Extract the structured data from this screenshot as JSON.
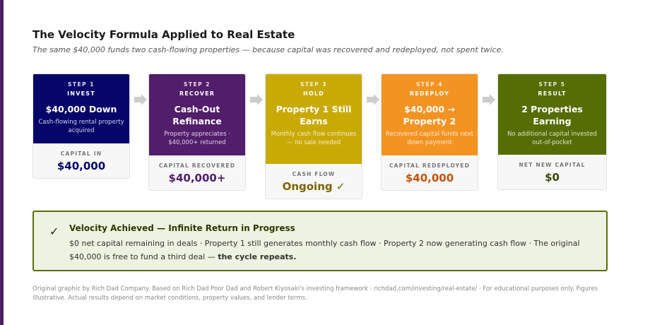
{
  "title": "The Velocity Formula Applied to Real Estate",
  "subtitle": "The same $40,000 funds two cash-flowing properties — because capital was recovered and redeployed, not spent twice.",
  "steps": [
    {
      "step": "STEP 1",
      "label": "INVEST",
      "title": "$40,000 Down",
      "desc": "Cash-flowing rental property acquired",
      "metric_label": "CAPITAL IN",
      "metric_value": "$40,000",
      "color": "#06066a",
      "value_color": "#06066a"
    },
    {
      "step": "STEP 2",
      "label": "RECOVER",
      "title": "Cash-Out Refinance",
      "desc": "Property appreciates · $40,000+ returned",
      "metric_label": "CAPITAL RECOVERED",
      "metric_value": "$40,000+",
      "color": "#521d6a",
      "value_color": "#521d6a"
    },
    {
      "step": "STEP 3",
      "label": "HOLD",
      "title": "Property 1 Still Earns",
      "desc": "Monthly cash flow continues — no sale needed",
      "metric_label": "CASH FLOW",
      "metric_value": "Ongoing ✓",
      "color": "#c9aa05",
      "value_color": "#7a6400"
    },
    {
      "step": "STEP 4",
      "label": "REDEPLOY",
      "title": "$40,000 → Property 2",
      "desc": "Recovered capital funds next down payment",
      "metric_label": "CAPITAL REDEPLOYED",
      "metric_value": "$40,000",
      "color": "#f39322",
      "value_color": "#c4520a"
    },
    {
      "step": "STEP 5",
      "label": "RESULT",
      "title": "2 Properties Earning",
      "desc": "No additional capital invested out-of-pocket",
      "metric_label": "NET NEW CAPITAL",
      "metric_value": "$0",
      "color": "#566d06",
      "value_color": "#3a4a05"
    }
  ],
  "callout": {
    "icon": "check-icon",
    "title": "Velocity Achieved — Infinite Return in Progress",
    "body": "$0 net capital remaining in deals  ·  Property 1 still generates monthly cash flow  ·  Property 2 now generating cash flow  ·  The original $40,000 is free to fund a third deal — ",
    "body_bold": "the cycle repeats."
  },
  "footer": "Original graphic by Rich Dad Company. Based on Rich Dad Poor Dad and Robert Kiyosaki's investing framework · richdad.com/investing/real-estate/ · For educational purposes only. Figures illustrative. Actual results depend on market conditions, property values, and lender terms."
}
